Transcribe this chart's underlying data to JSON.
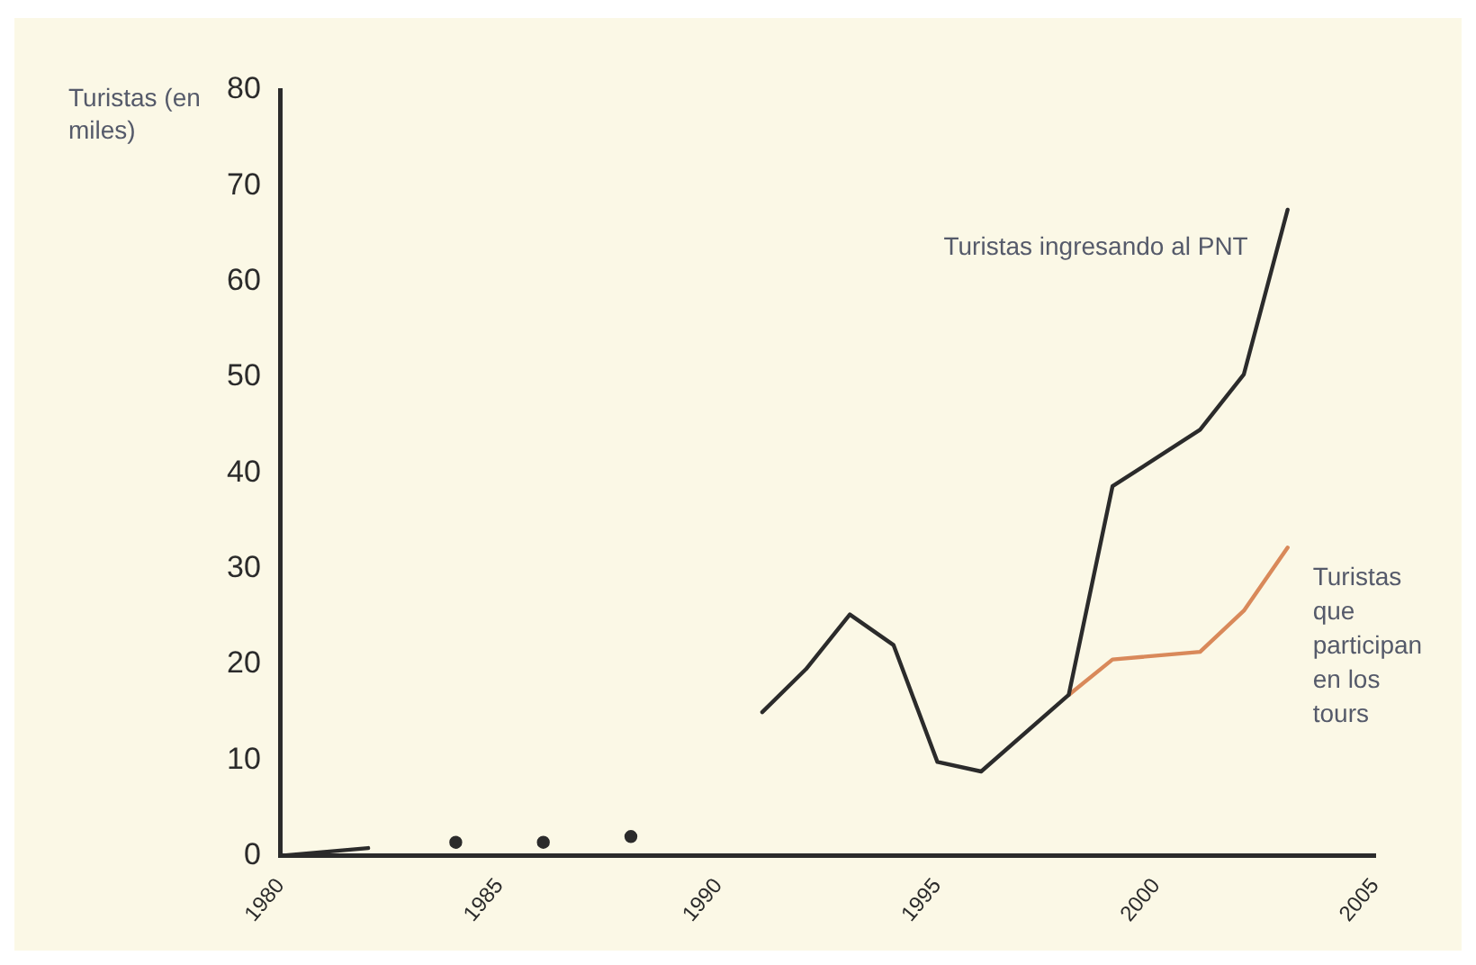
{
  "chart_data": {
    "type": "line",
    "ylabel": "Turistas (en miles)",
    "xlim": [
      1980,
      2005
    ],
    "xticks": [
      1980,
      1985,
      1990,
      1995,
      2000,
      2005
    ],
    "ylim": [
      0,
      80
    ],
    "yticks": [
      0,
      10,
      20,
      30,
      40,
      50,
      60,
      70,
      80
    ],
    "grid": false,
    "legend": false,
    "marker": "none",
    "line_style": "solid",
    "series": [
      {
        "name": "Turistas ingresando al PNT",
        "color": "#2b2b2b",
        "x": [
          1980,
          1982,
          1986,
          1991,
          1992,
          1993,
          1994,
          1995,
          1996,
          1998,
          1999,
          2001,
          2002,
          2003
        ],
        "values": [
          0,
          0.8,
          null,
          15,
          19.5,
          25.2,
          22,
          9.8,
          8.8,
          16.8,
          38.6,
          44.5,
          50.3,
          67.5
        ]
      },
      {
        "type": "scatter",
        "marker": "circle",
        "color": "#2b2b2b",
        "x": [
          1984,
          1986,
          1988
        ],
        "values": [
          1.4,
          1.4,
          2
        ]
      },
      {
        "name": "Turistas que participan en los tours",
        "color": "#d9895a",
        "x": [
          1998,
          1999,
          2001,
          2002,
          2003
        ],
        "values": [
          16.8,
          20.5,
          21.3,
          25.6,
          32.2
        ]
      }
    ]
  }
}
